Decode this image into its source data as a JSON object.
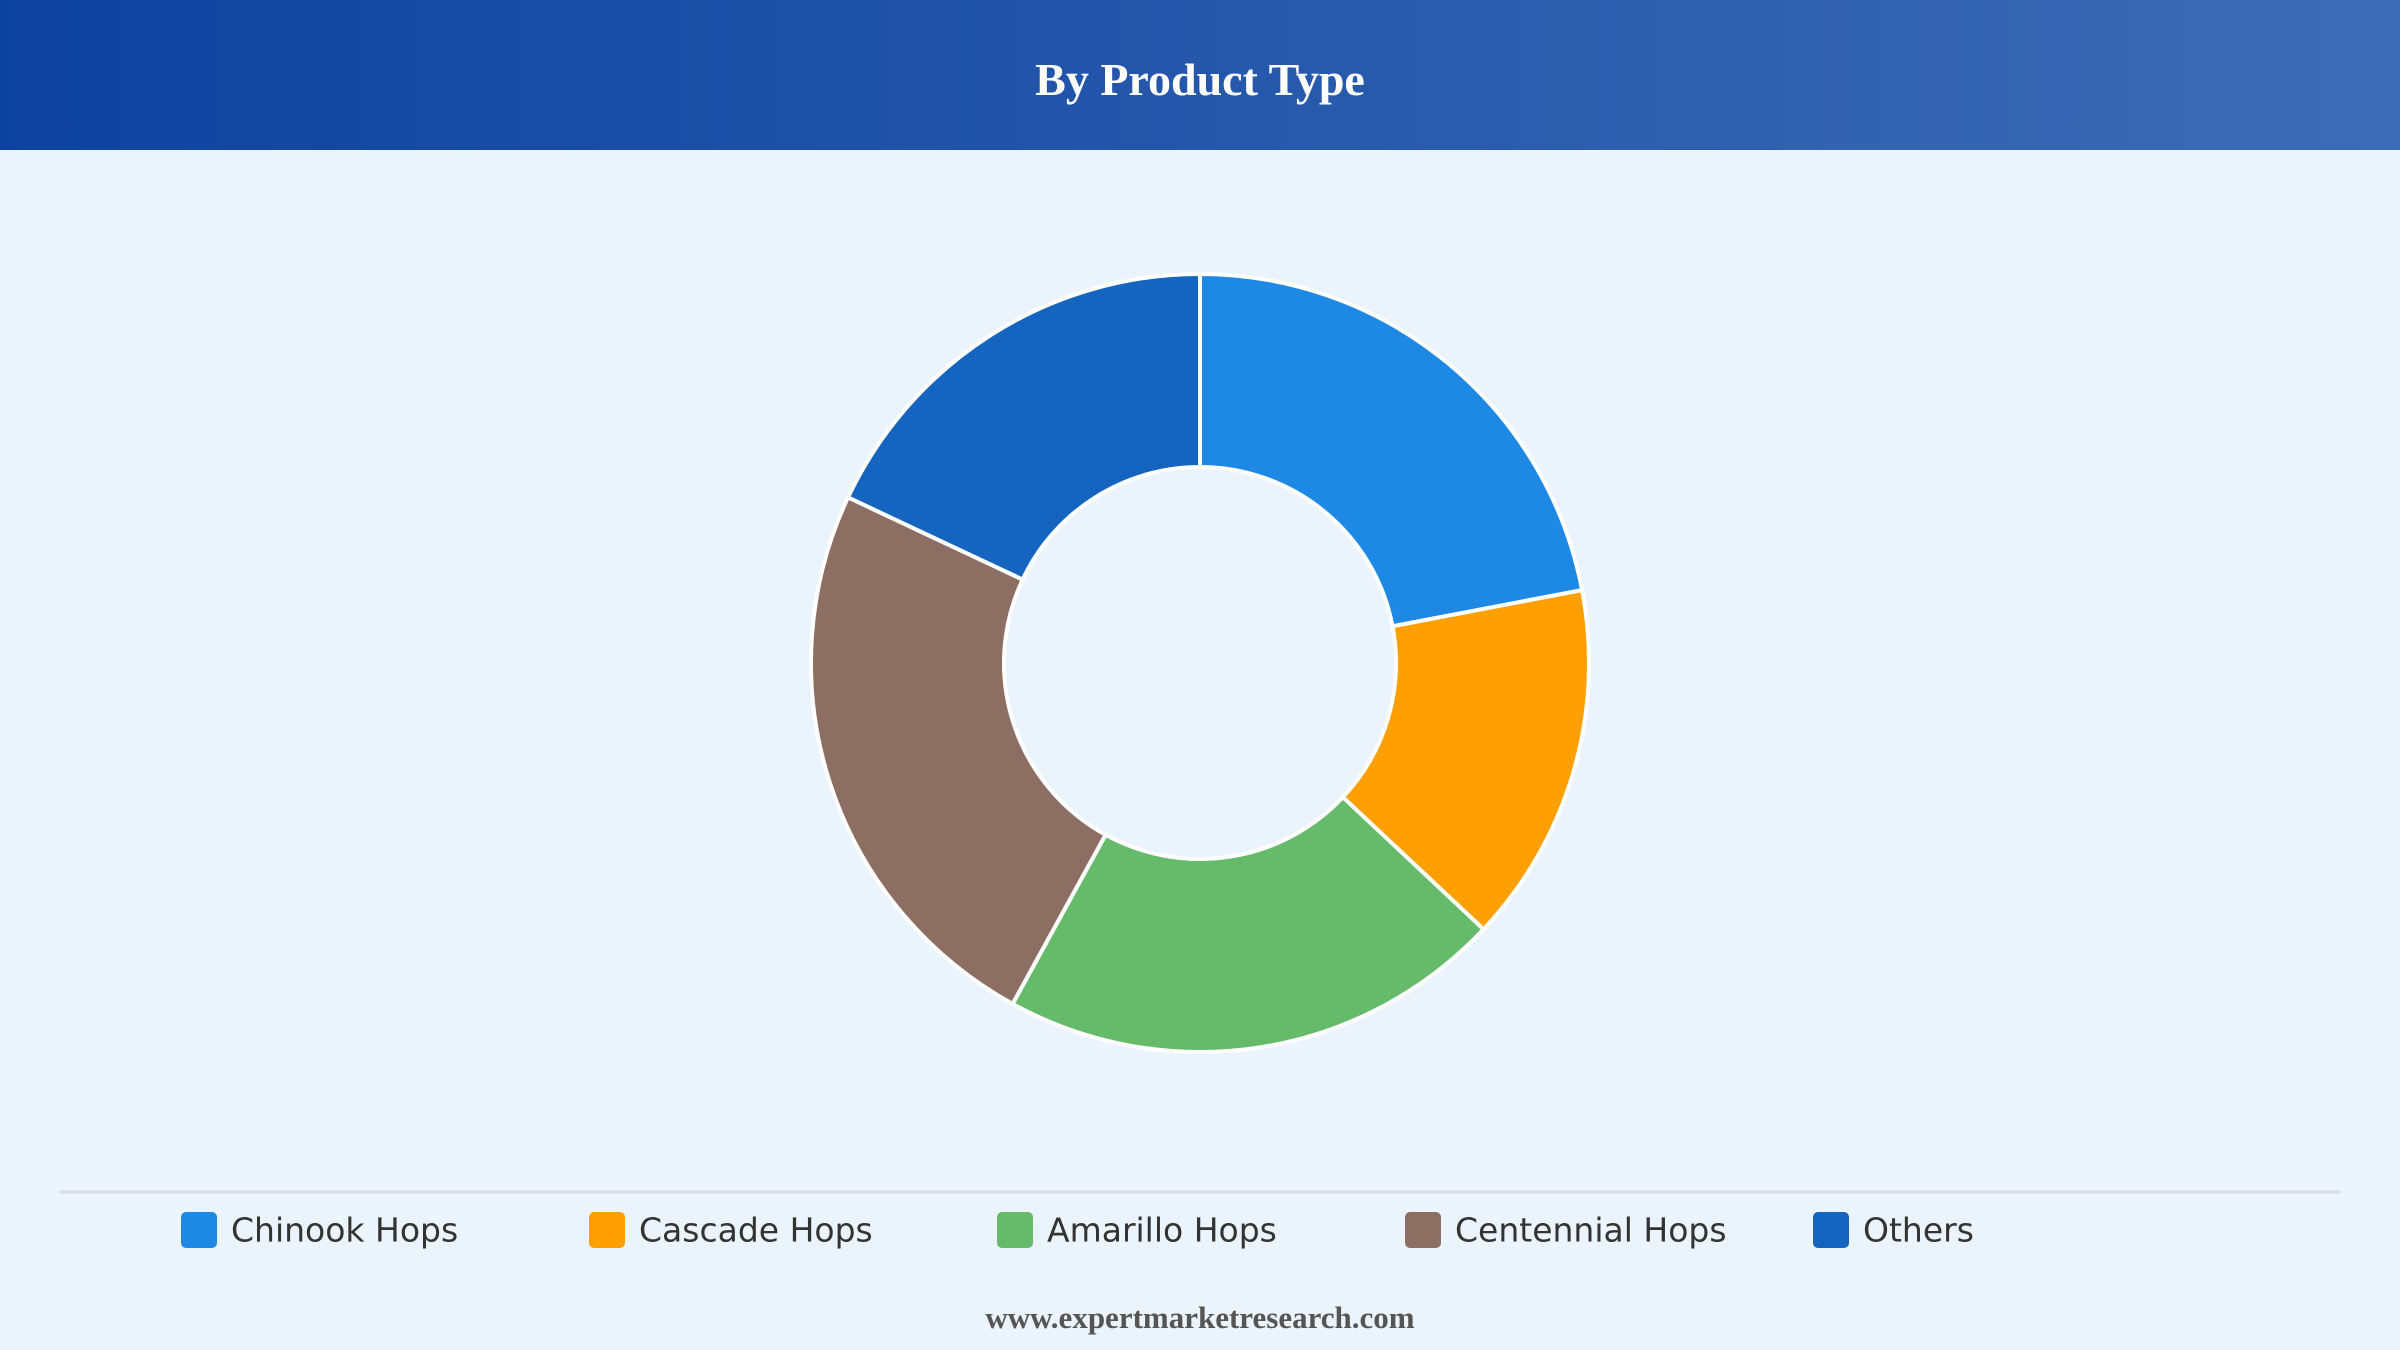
{
  "chart_data": {
    "type": "pie",
    "title": "By Product Type",
    "categories": [
      "Chinook Hops",
      "Cascade Hops",
      "Amarillo Hops",
      "Centennial Hops",
      "Others"
    ],
    "values": [
      22,
      15,
      21,
      24,
      18
    ],
    "colors": [
      "#1e88e5",
      "#ffa000",
      "#66bb6a",
      "#8d6e63",
      "#1565c0"
    ],
    "donut": true
  },
  "footer": "www.expertmarketresearch.com"
}
